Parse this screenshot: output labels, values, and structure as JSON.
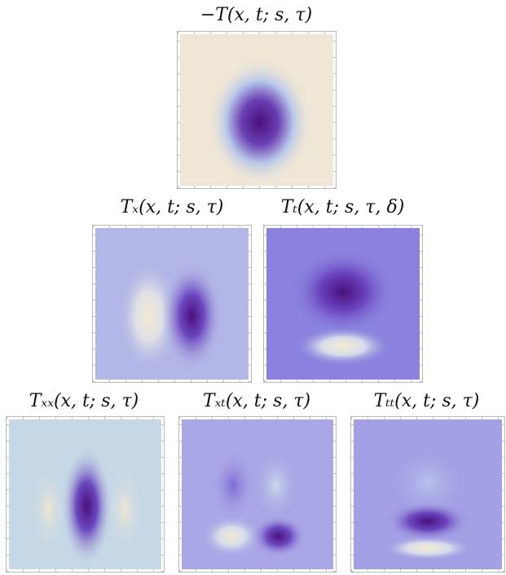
{
  "panels": [
    {
      "id": "neg-T",
      "label": "−T(x, t;  s, τ)"
    },
    {
      "id": "T-x",
      "label": "Tₓ(x, t;  s, τ)"
    },
    {
      "id": "T-t",
      "label": "Tₜ(x, t;  s, τ, δ)"
    },
    {
      "id": "T-xx",
      "label": "Tₓₓ(x, t;  s, τ)"
    },
    {
      "id": "T-xt",
      "label": "Tₓₜ(x, t;  s, τ)"
    },
    {
      "id": "T-tt",
      "label": "Tₜₜ(x, t;  s, τ)"
    }
  ],
  "colors": {
    "dark": "#4b0f7d",
    "mid": "#8a7fe0",
    "light": "#f0e8d5",
    "neutral-beige": "#efe6d6",
    "neutral-blue": "#c6d8e6",
    "neutral-violet": "#a9a6e6"
  }
}
